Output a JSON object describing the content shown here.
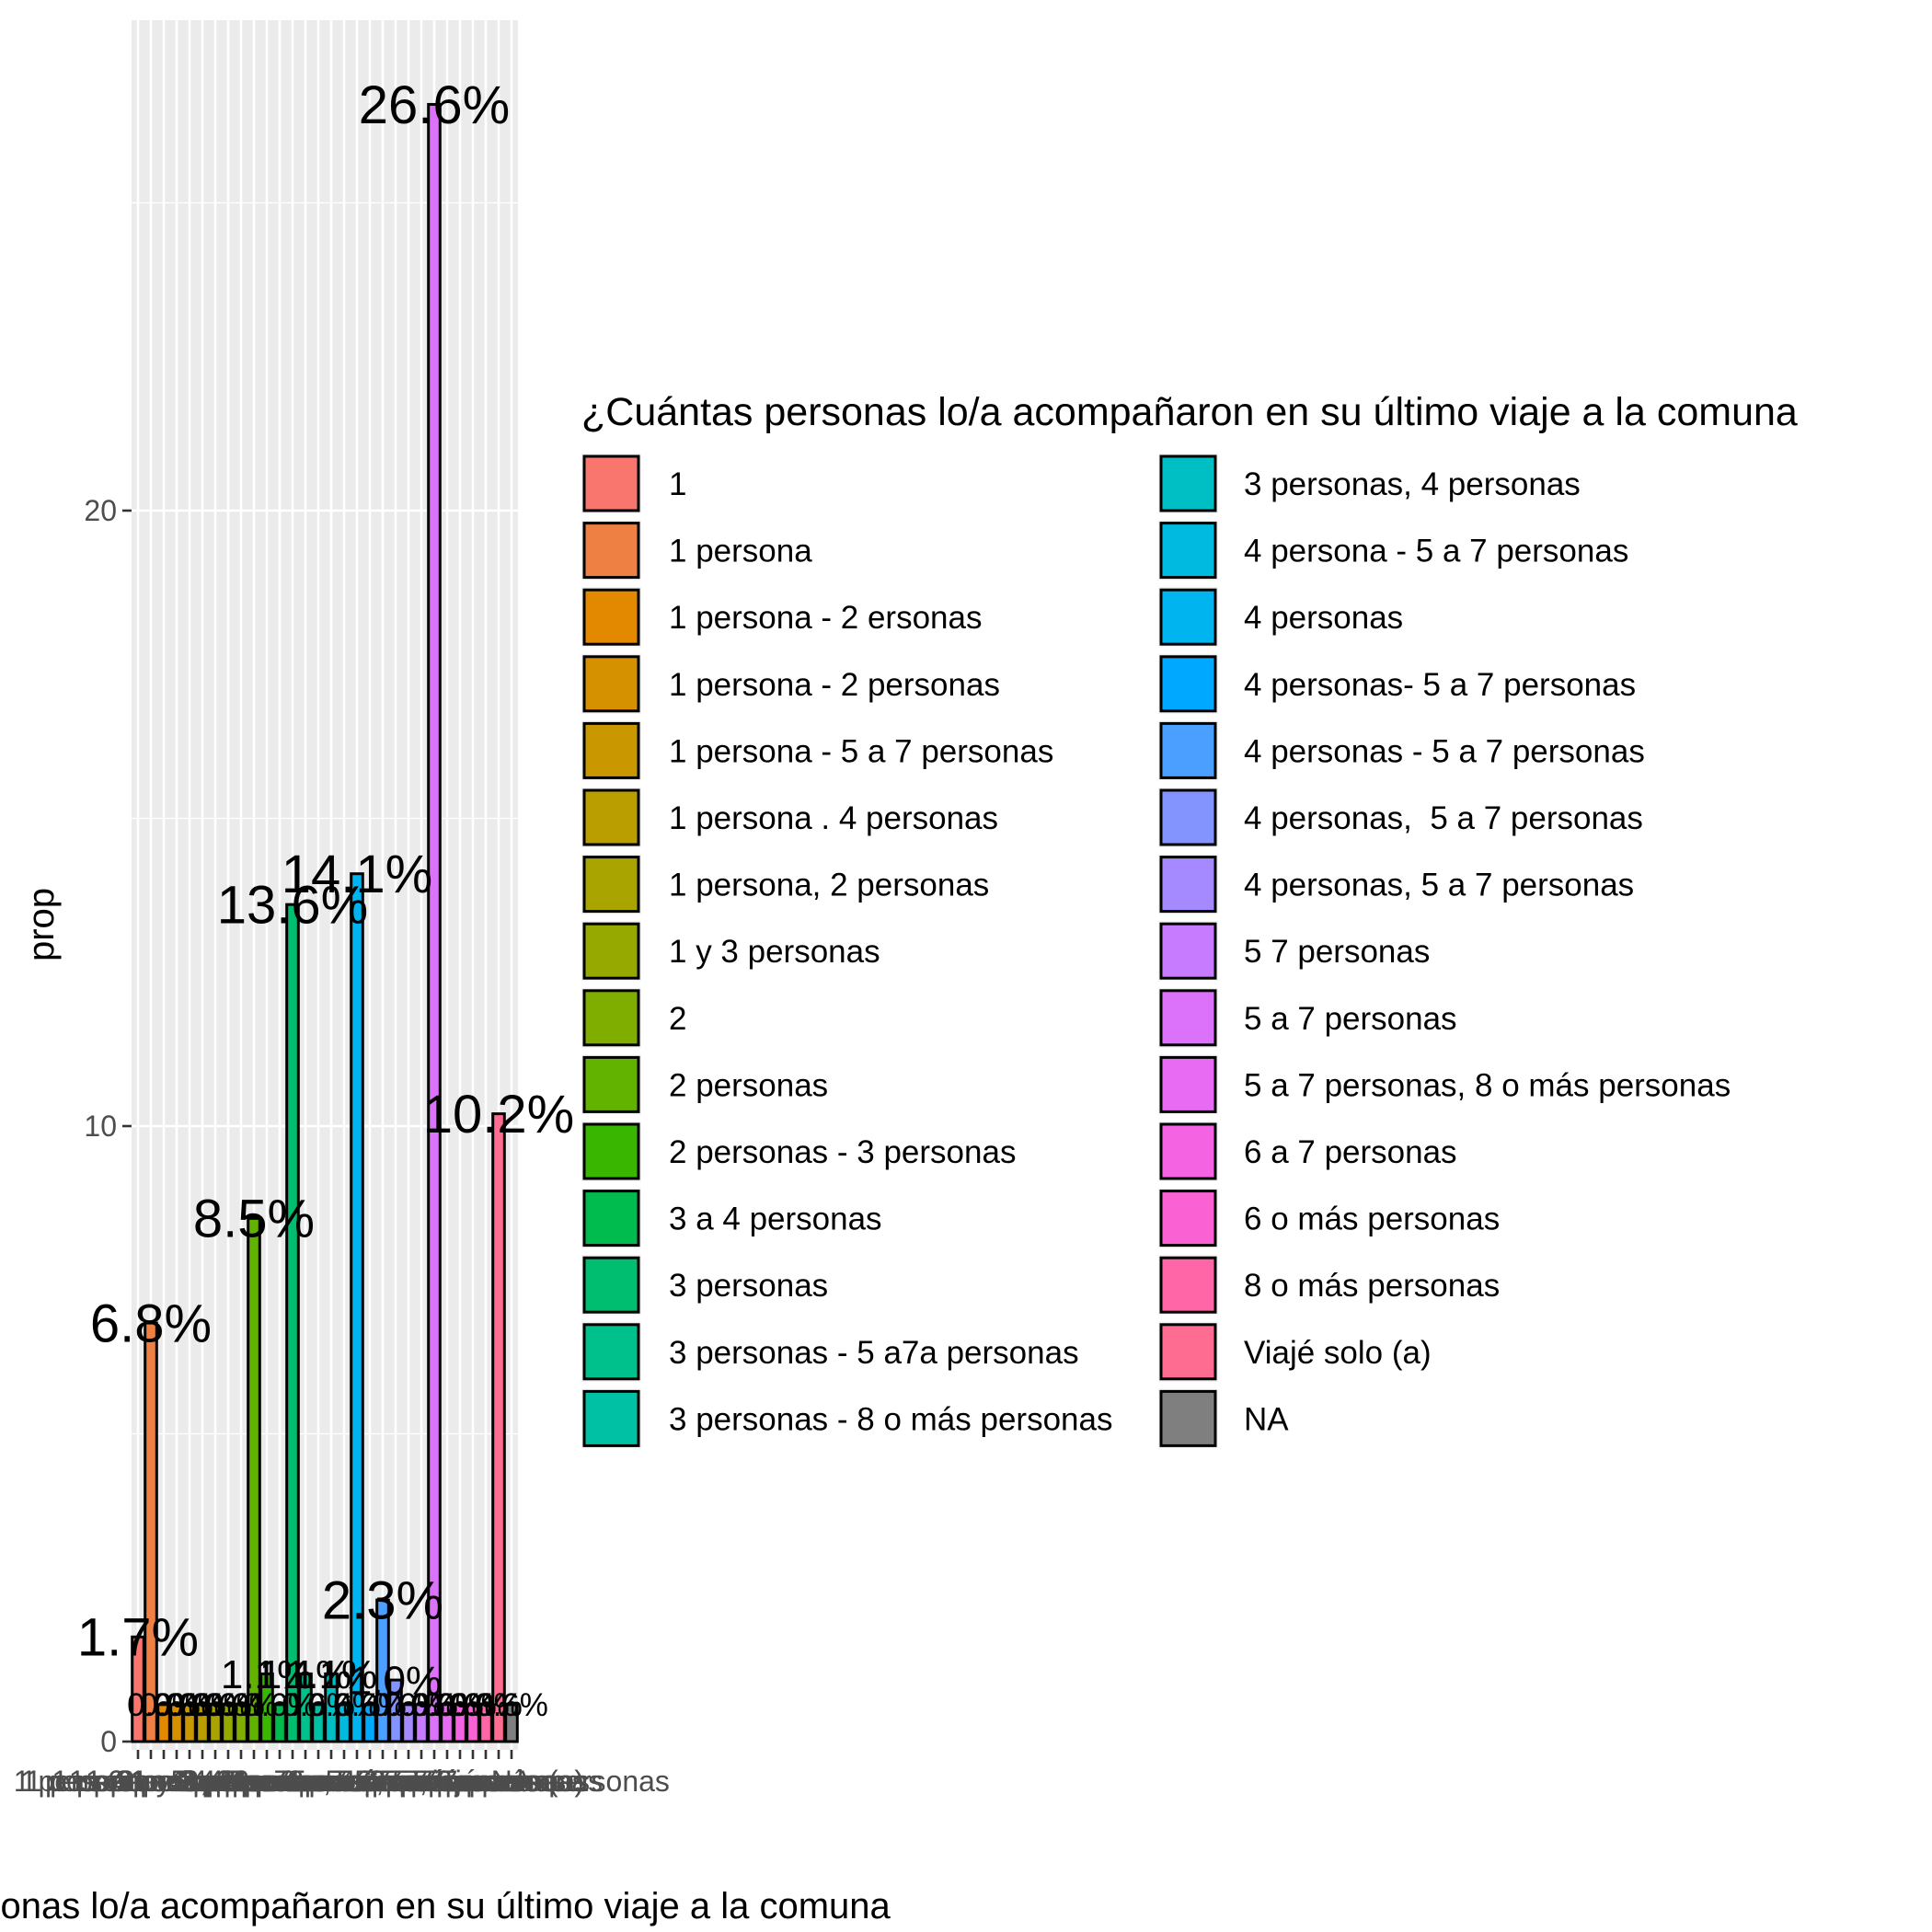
{
  "chart_data": {
    "type": "bar",
    "ylabel": "prop",
    "xlabel": "¿Cuántas personas lo/a acompañaron en su último viaje a la comuna",
    "ylim": [
      0,
      28
    ],
    "yticks": [
      0,
      10,
      20
    ],
    "grid": true,
    "legend_position": "right",
    "legend_title": "¿Cuántas personas lo/a acompañaron en su último viaje a la comuna",
    "categories": [
      "1",
      "1 persona",
      "1 persona - 2 ersonas",
      "1 persona - 2 personas",
      "1 persona - 5 a 7 personas",
      "1 persona . 4 personas",
      "1 persona, 2 personas",
      "1 y 3 personas",
      "2",
      "2 personas",
      "2 personas - 3 personas",
      "3 a 4 personas",
      "3 personas",
      "3 personas - 5 a7a personas",
      "3 personas - 8 o más personas",
      "3 personas, 4 personas",
      "4 persona - 5 a 7 personas",
      "4 personas",
      "4 personas- 5 a 7 personas",
      "4 personas - 5 a 7 personas",
      "4 personas,  5 a 7 personas",
      "4 personas, 5 a 7 personas",
      "5 7 personas",
      "5 a 7 personas",
      "5 a 7 personas, 8 o más personas",
      "6 a 7 personas",
      "6 o más personas",
      "8 o más personas",
      "Viajé solo (a)",
      "NA"
    ],
    "values": [
      1.7,
      6.8,
      0.6,
      0.6,
      0.6,
      0.6,
      0.6,
      0.6,
      0.6,
      8.5,
      1.1,
      0.6,
      13.6,
      1.1,
      0.6,
      1.1,
      0.6,
      14.1,
      0.6,
      2.3,
      1.0,
      0.6,
      0.6,
      26.6,
      0.6,
      0.6,
      0.6,
      0.6,
      10.2,
      0.6
    ],
    "labels": [
      "1.7%",
      "6.8%",
      "0.6%",
      "0.6%",
      "0.6%",
      "0.6%",
      "0.6%",
      "0.6%",
      "0.6%",
      "8.5%",
      "1.1%",
      "0.6%",
      "13.6%",
      "1.1%",
      "0.6%",
      "1.1%",
      "0.6%",
      "14.1%",
      "0.6%",
      "2.3%",
      "1.0%",
      "0.6%",
      "0.6%",
      "26.6%",
      "0.6%",
      "0.6%",
      "0.6%",
      "0.6%",
      "10.2%",
      "0.6%"
    ],
    "label_sizes": [
      58,
      58,
      35,
      35,
      35,
      35,
      35,
      35,
      35,
      58,
      44,
      35,
      58,
      44,
      35,
      44,
      35,
      58,
      35,
      58,
      44,
      35,
      35,
      58,
      35,
      35,
      35,
      35,
      58,
      35
    ],
    "colors": [
      "#F8766D",
      "#EE8044",
      "#E38900",
      "#D69100",
      "#C99800",
      "#BA9E00",
      "#A9A400",
      "#96A900",
      "#7FAE00",
      "#62B200",
      "#39B600",
      "#00BB4E",
      "#00BE70",
      "#00C08B",
      "#00C1A3",
      "#00BFC4",
      "#00BAE0",
      "#00B4F0",
      "#00A9FF",
      "#4B9FFF",
      "#8494FF",
      "#A58AFF",
      "#C77CFF",
      "#DC71FA",
      "#E76BF3",
      "#F464E2",
      "#FA62D4",
      "#FF66A8",
      "#FF6C91",
      "#7F7F7F"
    ]
  }
}
